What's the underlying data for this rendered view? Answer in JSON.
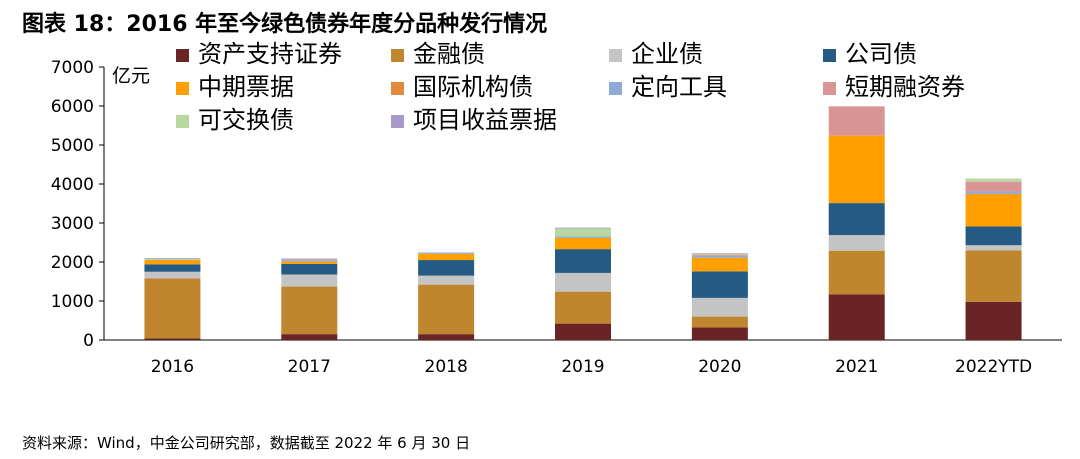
{
  "figure": {
    "title": "图表 18：2016 年至今绿色债券年度分品种发行情况",
    "source": "资料来源：Wind，中金公司研究部，数据截至 2022 年 6 月 30 日"
  },
  "chart_data": {
    "type": "bar",
    "stacked": true,
    "title": "",
    "xlabel": "",
    "ylabel": "亿元",
    "ylim": [
      0,
      7000
    ],
    "yticks": [
      "0",
      "1000",
      "2000",
      "3000",
      "4000",
      "5000",
      "6000",
      "7000"
    ],
    "grid": false,
    "legend_position": "top",
    "categories": [
      "2016",
      "2017",
      "2018",
      "2019",
      "2020",
      "2021",
      "2022YTD"
    ],
    "series": [
      {
        "name": "资产支持证券",
        "color": "#6b2426",
        "values": [
          40,
          150,
          150,
          420,
          320,
          1170,
          980
        ]
      },
      {
        "name": "金融债",
        "color": "#c0862e",
        "values": [
          1540,
          1220,
          1270,
          820,
          280,
          1120,
          1320
        ]
      },
      {
        "name": "企业债",
        "color": "#c4c4c4",
        "values": [
          170,
          310,
          230,
          480,
          480,
          400,
          130
        ]
      },
      {
        "name": "公司债",
        "color": "#245a84",
        "values": [
          190,
          270,
          400,
          610,
          680,
          820,
          480
        ]
      },
      {
        "name": "中期票据",
        "color": "#ffa000",
        "values": [
          110,
          60,
          160,
          290,
          350,
          1730,
          820
        ]
      },
      {
        "name": "国际机构债",
        "color": "#e08a3e",
        "values": [
          0,
          10,
          0,
          0,
          0,
          0,
          20
        ]
      },
      {
        "name": "定向工具",
        "color": "#8eaad6",
        "values": [
          0,
          30,
          20,
          40,
          50,
          0,
          60
        ]
      },
      {
        "name": "短期融资券",
        "color": "#d99494",
        "values": [
          0,
          0,
          0,
          0,
          30,
          750,
          250
        ]
      },
      {
        "name": "可交换债",
        "color": "#b7d8a0",
        "values": [
          30,
          10,
          10,
          200,
          30,
          0,
          80
        ]
      },
      {
        "name": "项目收益票据",
        "color": "#a89ac8",
        "values": [
          20,
          30,
          10,
          20,
          10,
          0,
          0
        ]
      }
    ]
  }
}
